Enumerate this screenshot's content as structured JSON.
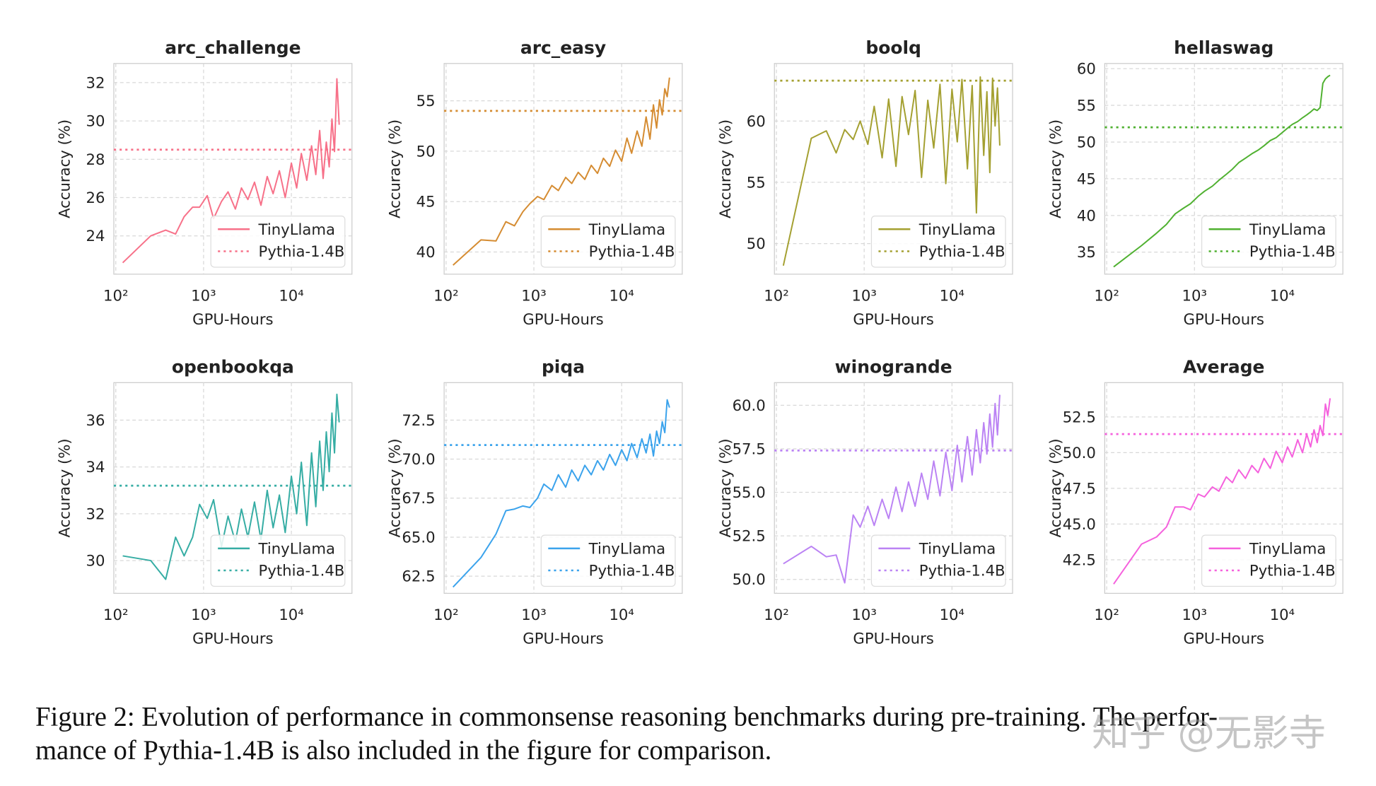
{
  "chart_data": [
    {
      "type": "line",
      "title": "arc_challenge",
      "xlabel": "GPU-Hours",
      "ylabel": "Accuracy (%)",
      "xscale": "log",
      "grid": true,
      "legend": "lower right",
      "xlim": [
        95,
        49000
      ],
      "xticks": [
        {
          "value": 100,
          "label": "10²"
        },
        {
          "value": 1000,
          "label": "10³"
        },
        {
          "value": 10000,
          "label": "10⁴"
        }
      ],
      "ylim": [
        22.0,
        33.0
      ],
      "yticks": [
        24,
        26,
        28,
        30,
        32
      ],
      "series": [
        {
          "name": "TinyLlama",
          "color": "#f77189",
          "linestyle": "solid",
          "x": [
            120,
            250,
            370,
            480,
            600,
            750,
            900,
            1100,
            1300,
            1600,
            1900,
            2300,
            2700,
            3200,
            3800,
            4500,
            5300,
            6200,
            7300,
            8500,
            10000,
            11500,
            13000,
            15000,
            17000,
            19000,
            21000,
            23000,
            25000,
            27000,
            29000,
            31000,
            33000,
            35000
          ],
          "values": [
            22.6,
            24.0,
            24.3,
            24.1,
            25.0,
            25.5,
            25.5,
            26.1,
            24.9,
            25.8,
            26.3,
            25.4,
            26.5,
            25.9,
            26.8,
            25.6,
            27.1,
            26.2,
            27.4,
            26.0,
            27.8,
            26.5,
            28.3,
            26.9,
            28.7,
            27.2,
            29.5,
            27.0,
            28.9,
            27.6,
            30.1,
            28.4,
            32.2,
            29.8
          ]
        },
        {
          "name": "Pythia-1.4B",
          "color": "#f77189",
          "linestyle": "dotted",
          "value": 28.5
        }
      ]
    },
    {
      "type": "line",
      "title": "arc_easy",
      "xlabel": "GPU-Hours",
      "ylabel": "Accuracy (%)",
      "xscale": "log",
      "grid": true,
      "legend": "lower right",
      "xlim": [
        95,
        49000
      ],
      "xticks": [
        {
          "value": 100,
          "label": "10²"
        },
        {
          "value": 1000,
          "label": "10³"
        },
        {
          "value": 10000,
          "label": "10⁴"
        }
      ],
      "ylim": [
        37.8,
        58.7
      ],
      "yticks": [
        40,
        45,
        50,
        55
      ],
      "series": [
        {
          "name": "TinyLlama",
          "color": "#d58c32",
          "linestyle": "solid",
          "x": [
            120,
            250,
            370,
            480,
            600,
            750,
            900,
            1100,
            1300,
            1600,
            1900,
            2300,
            2700,
            3200,
            3800,
            4500,
            5300,
            6200,
            7300,
            8500,
            10000,
            11500,
            13000,
            15000,
            17000,
            19000,
            21000,
            23000,
            25000,
            27000,
            29000,
            31000,
            33000,
            35000
          ],
          "values": [
            38.7,
            41.2,
            41.1,
            43.0,
            42.6,
            44.0,
            44.8,
            45.5,
            45.2,
            46.6,
            46.1,
            47.4,
            46.8,
            47.9,
            47.2,
            48.6,
            47.8,
            49.3,
            48.5,
            50.1,
            49.0,
            51.3,
            49.8,
            52.0,
            50.5,
            53.4,
            51.2,
            54.6,
            52.3,
            55.1,
            53.6,
            56.2,
            55.4,
            57.3
          ]
        },
        {
          "name": "Pythia-1.4B",
          "color": "#d58c32",
          "linestyle": "dotted",
          "value": 54.0
        }
      ]
    },
    {
      "type": "line",
      "title": "boolq",
      "xlabel": "GPU-Hours",
      "ylabel": "Accuracy (%)",
      "xscale": "log",
      "grid": true,
      "legend": "lower right",
      "xlim": [
        95,
        49000
      ],
      "xticks": [
        {
          "value": 100,
          "label": "10²"
        },
        {
          "value": 1000,
          "label": "10³"
        },
        {
          "value": 10000,
          "label": "10⁴"
        }
      ],
      "ylim": [
        47.5,
        64.7
      ],
      "yticks": [
        50,
        55,
        60
      ],
      "series": [
        {
          "name": "TinyLlama",
          "color": "#a4a031",
          "linestyle": "solid",
          "x": [
            120,
            250,
            370,
            480,
            600,
            750,
            900,
            1100,
            1300,
            1600,
            1900,
            2300,
            2700,
            3200,
            3800,
            4500,
            5300,
            6200,
            7300,
            8500,
            10000,
            11500,
            13000,
            15000,
            17000,
            19000,
            21000,
            23000,
            25000,
            27000,
            29000,
            31000,
            33000,
            35000
          ],
          "values": [
            48.2,
            58.6,
            59.2,
            57.4,
            59.3,
            58.5,
            60.0,
            58.1,
            61.2,
            57.0,
            61.8,
            56.3,
            62.0,
            58.9,
            62.5,
            55.4,
            61.7,
            57.8,
            63.0,
            54.9,
            62.6,
            58.3,
            63.4,
            56.1,
            62.9,
            52.5,
            63.6,
            57.2,
            62.4,
            55.8,
            63.5,
            59.6,
            62.7,
            58.0
          ]
        },
        {
          "name": "Pythia-1.4B",
          "color": "#a4a031",
          "linestyle": "dotted",
          "value": 63.3
        }
      ]
    },
    {
      "type": "line",
      "title": "hellaswag",
      "xlabel": "GPU-Hours",
      "ylabel": "Accuracy (%)",
      "xscale": "log",
      "grid": true,
      "legend": "lower right",
      "xlim": [
        95,
        49000
      ],
      "xticks": [
        {
          "value": 100,
          "label": "10²"
        },
        {
          "value": 1000,
          "label": "10³"
        },
        {
          "value": 10000,
          "label": "10⁴"
        }
      ],
      "ylim": [
        32.0,
        60.7
      ],
      "yticks": [
        35,
        40,
        45,
        50,
        55,
        60
      ],
      "series": [
        {
          "name": "TinyLlama",
          "color": "#50b131",
          "linestyle": "solid",
          "x": [
            120,
            250,
            370,
            480,
            600,
            750,
            900,
            1100,
            1300,
            1600,
            1900,
            2300,
            2700,
            3200,
            3800,
            4500,
            5300,
            6200,
            7300,
            8500,
            10000,
            11500,
            13000,
            15000,
            17000,
            19000,
            21000,
            23000,
            25000,
            27000,
            29000,
            31000,
            33000,
            35000
          ],
          "values": [
            33.0,
            35.9,
            37.6,
            38.8,
            40.2,
            41.0,
            41.6,
            42.6,
            43.3,
            44.0,
            44.8,
            45.6,
            46.3,
            47.2,
            47.8,
            48.4,
            48.9,
            49.5,
            50.2,
            50.6,
            51.3,
            51.9,
            52.4,
            52.8,
            53.3,
            53.7,
            54.1,
            54.5,
            54.3,
            54.7,
            58.0,
            58.6,
            58.9,
            59.1
          ]
        },
        {
          "name": "Pythia-1.4B",
          "color": "#50b131",
          "linestyle": "dotted",
          "value": 52.0
        }
      ]
    },
    {
      "type": "line",
      "title": "openbookqa",
      "xlabel": "GPU-Hours",
      "ylabel": "Accuracy (%)",
      "xscale": "log",
      "grid": true,
      "legend": "lower right",
      "xlim": [
        95,
        49000
      ],
      "xticks": [
        {
          "value": 100,
          "label": "10²"
        },
        {
          "value": 1000,
          "label": "10³"
        },
        {
          "value": 10000,
          "label": "10⁴"
        }
      ],
      "ylim": [
        28.6,
        37.6
      ],
      "yticks": [
        30,
        32,
        34,
        36
      ],
      "series": [
        {
          "name": "TinyLlama",
          "color": "#36ada4",
          "linestyle": "solid",
          "x": [
            120,
            250,
            370,
            480,
            600,
            750,
            900,
            1100,
            1300,
            1600,
            1900,
            2300,
            2700,
            3200,
            3800,
            4500,
            5300,
            6200,
            7300,
            8500,
            10000,
            11500,
            13000,
            15000,
            17000,
            19000,
            21000,
            23000,
            25000,
            27000,
            29000,
            31000,
            33000,
            35000
          ],
          "values": [
            30.2,
            30.0,
            29.2,
            31.0,
            30.2,
            31.0,
            32.4,
            31.8,
            32.6,
            30.6,
            31.9,
            30.8,
            32.2,
            31.0,
            32.5,
            30.9,
            33.0,
            31.4,
            32.8,
            31.2,
            33.6,
            32.0,
            34.2,
            31.5,
            34.6,
            32.3,
            35.1,
            33.0,
            35.5,
            33.8,
            36.3,
            34.6,
            37.1,
            35.9
          ]
        },
        {
          "name": "Pythia-1.4B",
          "color": "#36ada4",
          "linestyle": "dotted",
          "value": 33.2
        }
      ]
    },
    {
      "type": "line",
      "title": "piqa",
      "xlabel": "GPU-Hours",
      "ylabel": "Accuracy (%)",
      "xscale": "log",
      "grid": true,
      "legend": "lower right",
      "xlim": [
        95,
        49000
      ],
      "xticks": [
        {
          "value": 100,
          "label": "10²"
        },
        {
          "value": 1000,
          "label": "10³"
        },
        {
          "value": 10000,
          "label": "10⁴"
        }
      ],
      "ylim": [
        61.4,
        74.9
      ],
      "yticks": [
        62.5,
        {
          "value": 65,
          "label": "65.0"
        },
        67.5,
        {
          "value": 70,
          "label": "70.0"
        },
        72.5
      ],
      "series": [
        {
          "name": "TinyLlama",
          "color": "#3ba3ec",
          "linestyle": "solid",
          "x": [
            120,
            250,
            370,
            480,
            600,
            750,
            900,
            1100,
            1300,
            1600,
            1900,
            2300,
            2700,
            3200,
            3800,
            4500,
            5300,
            6200,
            7300,
            8500,
            10000,
            11500,
            13000,
            15000,
            17000,
            19000,
            21000,
            23000,
            25000,
            27000,
            29000,
            31000,
            33000,
            35000
          ],
          "values": [
            61.8,
            63.7,
            65.2,
            66.7,
            66.8,
            67.0,
            66.9,
            67.5,
            68.4,
            68.0,
            69.0,
            68.2,
            69.3,
            68.6,
            69.6,
            69.0,
            69.9,
            69.3,
            70.3,
            69.6,
            70.6,
            69.9,
            71.0,
            70.1,
            71.3,
            70.4,
            71.6,
            70.2,
            71.8,
            71.0,
            72.4,
            71.7,
            73.8,
            73.3
          ]
        },
        {
          "name": "Pythia-1.4B",
          "color": "#3ba3ec",
          "linestyle": "dotted",
          "value": 70.9
        }
      ]
    },
    {
      "type": "line",
      "title": "winogrande",
      "xlabel": "GPU-Hours",
      "ylabel": "Accuracy (%)",
      "xscale": "log",
      "grid": true,
      "legend": "lower right",
      "xlim": [
        95,
        49000
      ],
      "xticks": [
        {
          "value": 100,
          "label": "10²"
        },
        {
          "value": 1000,
          "label": "10³"
        },
        {
          "value": 10000,
          "label": "10⁴"
        }
      ],
      "ylim": [
        49.2,
        61.3
      ],
      "yticks": [
        {
          "value": 50,
          "label": "50.0"
        },
        52.5,
        {
          "value": 55,
          "label": "55.0"
        },
        57.5,
        {
          "value": 60,
          "label": "60.0"
        }
      ],
      "series": [
        {
          "name": "TinyLlama",
          "color": "#bb83f4",
          "linestyle": "solid",
          "x": [
            120,
            250,
            370,
            480,
            600,
            750,
            900,
            1100,
            1300,
            1600,
            1900,
            2300,
            2700,
            3200,
            3800,
            4500,
            5300,
            6200,
            7300,
            8500,
            10000,
            11500,
            13000,
            15000,
            17000,
            19000,
            21000,
            23000,
            25000,
            27000,
            29000,
            31000,
            33000,
            35000
          ],
          "values": [
            50.9,
            51.9,
            51.3,
            51.4,
            49.8,
            53.7,
            53.0,
            54.2,
            53.1,
            54.6,
            53.5,
            55.3,
            53.9,
            55.6,
            54.2,
            56.1,
            54.6,
            56.8,
            54.8,
            57.3,
            55.1,
            57.7,
            55.6,
            58.2,
            56.0,
            58.6,
            56.7,
            59.0,
            57.2,
            59.5,
            57.6,
            60.1,
            58.3,
            60.6
          ]
        },
        {
          "name": "Pythia-1.4B",
          "color": "#bb83f4",
          "linestyle": "dotted",
          "value": 57.4
        }
      ]
    },
    {
      "type": "line",
      "title": "Average",
      "xlabel": "GPU-Hours",
      "ylabel": "Accuracy (%)",
      "xscale": "log",
      "grid": true,
      "legend": "lower right",
      "xlim": [
        95,
        49000
      ],
      "xticks": [
        {
          "value": 100,
          "label": "10²"
        },
        {
          "value": 1000,
          "label": "10³"
        },
        {
          "value": 10000,
          "label": "10⁴"
        }
      ],
      "ylim": [
        40.15,
        54.9
      ],
      "yticks": [
        42.5,
        {
          "value": 45,
          "label": "45.0"
        },
        47.5,
        {
          "value": 50,
          "label": "50.0"
        },
        52.5
      ],
      "series": [
        {
          "name": "TinyLlama",
          "color": "#f561dd",
          "linestyle": "solid",
          "x": [
            120,
            250,
            370,
            480,
            600,
            750,
            900,
            1100,
            1300,
            1600,
            1900,
            2300,
            2700,
            3200,
            3800,
            4500,
            5300,
            6200,
            7300,
            8500,
            10000,
            11500,
            13000,
            15000,
            17000,
            19000,
            21000,
            23000,
            25000,
            27000,
            29000,
            31000,
            33000,
            35000
          ],
          "values": [
            40.8,
            43.6,
            44.1,
            44.8,
            46.2,
            46.2,
            46.0,
            47.1,
            46.9,
            47.6,
            47.3,
            48.3,
            47.9,
            48.8,
            48.2,
            49.1,
            48.6,
            49.6,
            48.9,
            50.1,
            49.3,
            50.4,
            49.7,
            50.9,
            50.0,
            51.3,
            50.4,
            51.6,
            50.7,
            51.9,
            51.2,
            53.4,
            52.6,
            53.8
          ]
        },
        {
          "name": "Pythia-1.4B",
          "color": "#f561dd",
          "linestyle": "dotted",
          "value": 51.3
        }
      ]
    }
  ],
  "caption": [
    "Figure 2: Evolution of performance in commonsense reasoning benchmarks during pre-training. The perfor-",
    "mance of Pythia-1.4B is also included in the figure for comparison."
  ],
  "watermark": "知乎 @无影寺"
}
